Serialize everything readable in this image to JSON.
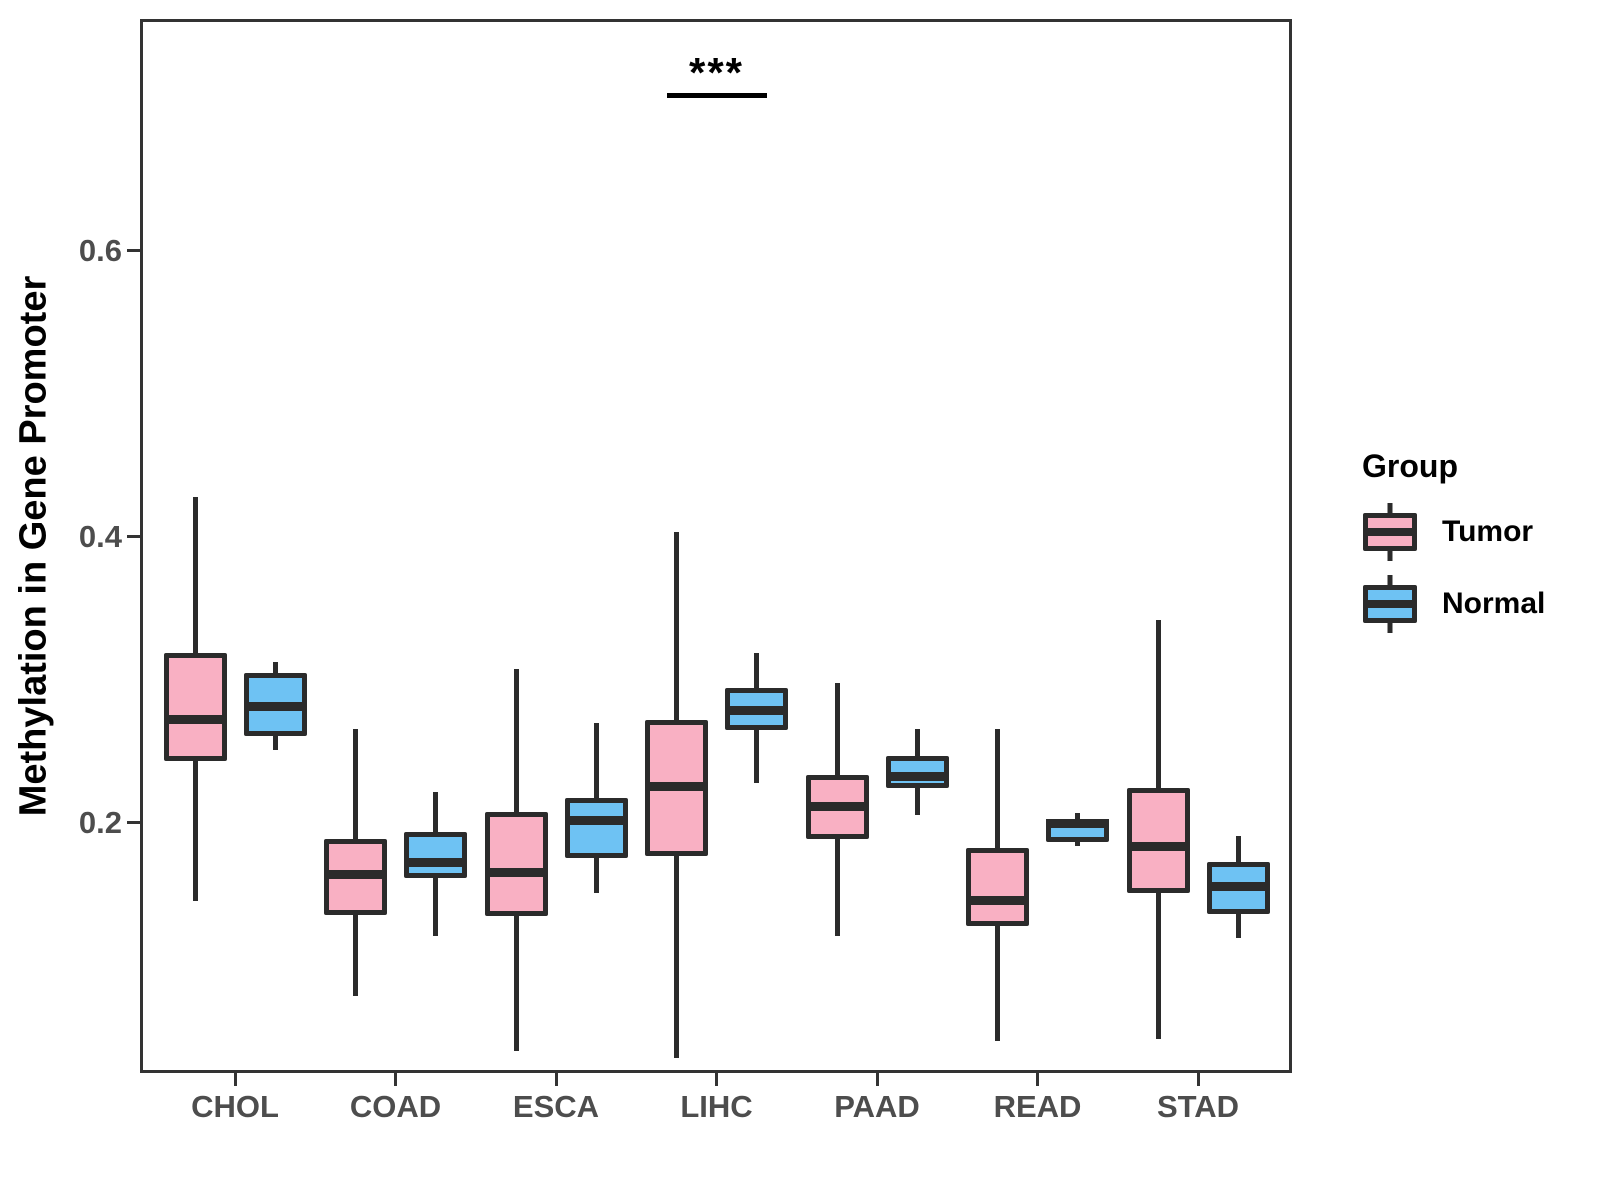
{
  "y_axis": {
    "label": "Methylation in Gene Promoter",
    "ticks": [
      "0.2",
      "0.4",
      "0.6"
    ],
    "tick_values": [
      0.2,
      0.4,
      0.6
    ]
  },
  "x_axis": {
    "categories": [
      "CHOL",
      "COAD",
      "ESCA",
      "LIHC",
      "PAAD",
      "READ",
      "STAD"
    ]
  },
  "legend": {
    "title": "Group",
    "position": "right",
    "items": [
      {
        "label": "Tumor",
        "color": "#F9B0C3"
      },
      {
        "label": "Normal",
        "color": "#6EC2F3"
      }
    ]
  },
  "colors": {
    "tumor_fill": "#F9B0C3",
    "normal_fill": "#6EC2F3",
    "box_stroke": "#2B2B2B",
    "panel_border": "#333333",
    "axis_text": "#4D4D4D"
  },
  "chart_data": {
    "type": "boxplot",
    "title": "",
    "xlabel": "",
    "ylabel": "Methylation in Gene Promoter",
    "categories": [
      "CHOL",
      "COAD",
      "ESCA",
      "LIHC",
      "PAAD",
      "READ",
      "STAD"
    ],
    "yticks": [
      0.2,
      0.4,
      0.6
    ],
    "ylim": [
      0.025,
      0.76
    ],
    "grid": false,
    "legend_position": "right",
    "series": [
      {
        "name": "Tumor",
        "color": "#F9B0C3",
        "boxes": [
          {
            "category": "CHOL",
            "whisker_low": 0.145,
            "q1": 0.243,
            "median": 0.272,
            "q3": 0.318,
            "whisker_high": 0.427
          },
          {
            "category": "COAD",
            "whisker_low": 0.078,
            "q1": 0.135,
            "median": 0.163,
            "q3": 0.188,
            "whisker_high": 0.265
          },
          {
            "category": "ESCA",
            "whisker_low": 0.04,
            "q1": 0.134,
            "median": 0.165,
            "q3": 0.207,
            "whisker_high": 0.307
          },
          {
            "category": "LIHC",
            "whisker_low": 0.035,
            "q1": 0.176,
            "median": 0.225,
            "q3": 0.271,
            "whisker_high": 0.403
          },
          {
            "category": "PAAD",
            "whisker_low": 0.12,
            "q1": 0.188,
            "median": 0.211,
            "q3": 0.233,
            "whisker_high": 0.297
          },
          {
            "category": "READ",
            "whisker_low": 0.047,
            "q1": 0.127,
            "median": 0.145,
            "q3": 0.182,
            "whisker_high": 0.265
          },
          {
            "category": "STAD",
            "whisker_low": 0.048,
            "q1": 0.15,
            "median": 0.183,
            "q3": 0.224,
            "whisker_high": 0.341
          }
        ]
      },
      {
        "name": "Normal",
        "color": "#6EC2F3",
        "boxes": [
          {
            "category": "CHOL",
            "whisker_low": 0.25,
            "q1": 0.26,
            "median": 0.281,
            "q3": 0.304,
            "whisker_high": 0.312
          },
          {
            "category": "COAD",
            "whisker_low": 0.12,
            "q1": 0.161,
            "median": 0.172,
            "q3": 0.193,
            "whisker_high": 0.221
          },
          {
            "category": "ESCA",
            "whisker_low": 0.15,
            "q1": 0.175,
            "median": 0.201,
            "q3": 0.217,
            "whisker_high": 0.269
          },
          {
            "category": "LIHC",
            "whisker_low": 0.227,
            "q1": 0.264,
            "median": 0.278,
            "q3": 0.294,
            "whisker_high": 0.318
          },
          {
            "category": "PAAD",
            "whisker_low": 0.205,
            "q1": 0.224,
            "median": 0.232,
            "q3": 0.246,
            "whisker_high": 0.265
          },
          {
            "category": "READ",
            "whisker_low": 0.183,
            "q1": 0.186,
            "median": 0.199,
            "q3": 0.202,
            "whisker_high": 0.206
          },
          {
            "category": "STAD",
            "whisker_low": 0.119,
            "q1": 0.136,
            "median": 0.155,
            "q3": 0.172,
            "whisker_high": 0.19
          }
        ]
      }
    ],
    "significance": {
      "label": "***",
      "category": "LIHC",
      "bar_y_value": 0.71,
      "text_y_value": 0.731
    }
  }
}
